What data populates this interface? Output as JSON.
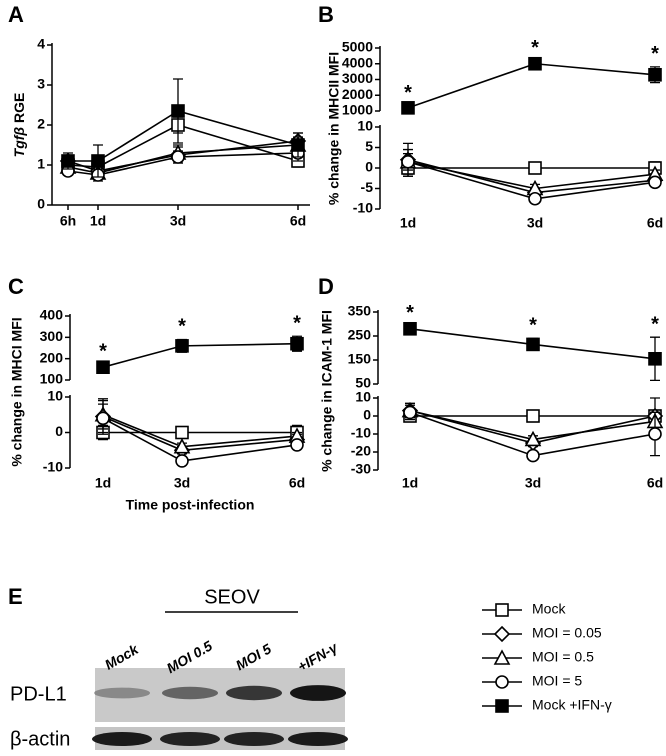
{
  "chart_data": [
    {
      "type": "line",
      "label": "A",
      "ylabel": {
        "gene": "Tgfβ",
        "unit": "RGE"
      },
      "x": [
        0.25,
        1,
        3,
        6
      ],
      "xlim": [
        -0.15,
        6.3
      ],
      "xticks": [
        {
          "value": 0.25,
          "label": "6h"
        },
        {
          "value": 1,
          "label": "1d"
        },
        {
          "value": 3,
          "label": "3d"
        },
        {
          "value": 6,
          "label": "6d"
        }
      ],
      "ylim": [
        0,
        4
      ],
      "yticks": [
        0,
        1,
        2,
        3,
        4
      ],
      "series": [
        {
          "name": "Mock",
          "marker": "square-open",
          "values": [
            1.0,
            0.95,
            2.0,
            1.1
          ],
          "errors": [
            0.15,
            0.15,
            0.2,
            0.15
          ]
        },
        {
          "name": "MOI = 0.05",
          "marker": "diamond",
          "values": [
            1.1,
            0.85,
            1.25,
            1.6
          ],
          "errors": [
            0.15,
            0.2,
            0.2,
            0.2
          ]
        },
        {
          "name": "MOI = 0.5",
          "marker": "triangle",
          "values": [
            0.95,
            0.8,
            1.3,
            1.5
          ],
          "errors": [
            0.15,
            0.15,
            0.2,
            0.2
          ]
        },
        {
          "name": "MOI = 5",
          "marker": "circle",
          "values": [
            0.85,
            0.75,
            1.2,
            1.3
          ],
          "errors": [
            0.1,
            0.15,
            0.15,
            0.2
          ]
        },
        {
          "name": "Mock +IFN-γ",
          "marker": "square-filled",
          "values": [
            1.1,
            1.1,
            2.35,
            1.5
          ],
          "errors": [
            0.2,
            0.4,
            0.8,
            0.3
          ]
        }
      ]
    },
    {
      "type": "line",
      "label": "B",
      "ylabel": "% change in MHCII MFI",
      "categories": [
        "1d",
        "3d",
        "6d"
      ],
      "ylim": [
        -10,
        10
      ],
      "yticks": [
        -10,
        -5,
        0,
        5,
        10
      ],
      "upper_ylim": [
        1000,
        5000
      ],
      "upper_yticks": [
        1000,
        2000,
        3000,
        4000,
        5000
      ],
      "significance": [
        "*",
        "*",
        "*"
      ],
      "series": [
        {
          "marker": "square-open",
          "values": [
            0,
            0,
            0
          ],
          "errors": [
            2,
            0.5,
            1.5
          ]
        },
        {
          "marker": "diamond",
          "values": [
            2,
            -6,
            -3
          ],
          "errors": [
            4,
            1,
            1
          ]
        },
        {
          "marker": "triangle",
          "values": [
            1.5,
            -5,
            -1.5
          ],
          "errors": [
            3,
            1,
            1
          ]
        },
        {
          "marker": "circle",
          "values": [
            1.5,
            -7.5,
            -3.5
          ],
          "errors": [
            2,
            1,
            1
          ]
        },
        {
          "marker": "square-filled",
          "values": [
            1200,
            4000,
            3300
          ],
          "errors": [
            150,
            200,
            500
          ]
        }
      ]
    },
    {
      "type": "line",
      "label": "C",
      "ylabel": "% change in MHCI MFI",
      "xlabel": "Time post-infection",
      "categories": [
        "1d",
        "3d",
        "6d"
      ],
      "ylim": [
        -10,
        10
      ],
      "yticks": [
        -10,
        0,
        10
      ],
      "upper_ylim": [
        100,
        400
      ],
      "upper_yticks": [
        100,
        200,
        300,
        400
      ],
      "significance": [
        "*",
        "*",
        "*"
      ],
      "series": [
        {
          "marker": "square-open",
          "values": [
            0,
            0,
            0
          ],
          "errors": [
            2,
            0.5,
            2
          ]
        },
        {
          "marker": "diamond",
          "values": [
            4.5,
            -5,
            -2
          ],
          "errors": [
            5,
            1,
            1.5
          ]
        },
        {
          "marker": "triangle",
          "values": [
            5,
            -4,
            -1
          ],
          "errors": [
            4,
            1,
            1
          ]
        },
        {
          "marker": "circle",
          "values": [
            4,
            -8,
            -3.5
          ],
          "errors": [
            4,
            1,
            1
          ]
        },
        {
          "marker": "square-filled",
          "values": [
            160,
            260,
            270
          ],
          "errors": [
            15,
            30,
            35
          ]
        }
      ]
    },
    {
      "type": "line",
      "label": "D",
      "ylabel": "% change in ICAM-1 MFI",
      "categories": [
        "1d",
        "3d",
        "6d"
      ],
      "ylim": [
        -30,
        10
      ],
      "yticks": [
        -30,
        -20,
        -10,
        0,
        10
      ],
      "upper_ylim": [
        50,
        350
      ],
      "upper_yticks": [
        50,
        150,
        250,
        350
      ],
      "significance": [
        "*",
        "*",
        "*"
      ],
      "series": [
        {
          "marker": "square-open",
          "values": [
            0,
            0,
            0
          ],
          "errors": [
            3,
            1,
            3
          ]
        },
        {
          "marker": "diamond",
          "values": [
            3,
            -15,
            0
          ],
          "errors": [
            4,
            2,
            10
          ]
        },
        {
          "marker": "triangle",
          "values": [
            3,
            -13,
            -3
          ],
          "errors": [
            4,
            2,
            5
          ]
        },
        {
          "marker": "circle",
          "values": [
            2,
            -22,
            -10
          ],
          "errors": [
            4,
            2,
            12
          ]
        },
        {
          "marker": "square-filled",
          "values": [
            280,
            215,
            155
          ],
          "errors": [
            12,
            25,
            90
          ]
        }
      ]
    }
  ],
  "blot": {
    "label": "E",
    "group": "SEOV",
    "lanes": [
      "Mock",
      "MOI 0.5",
      "MOI 5",
      "+IFN-γ"
    ],
    "rows": [
      "PD-L1",
      "β-actin"
    ]
  }
}
